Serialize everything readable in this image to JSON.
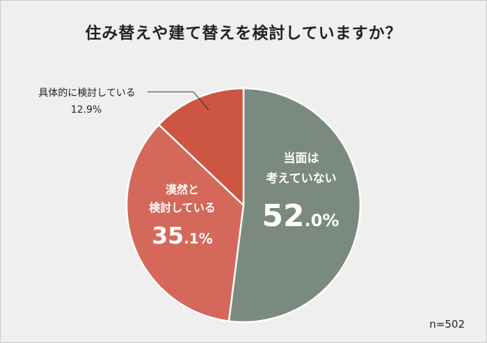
{
  "title": "住み替えや建て替えを検討していますか？",
  "sample_note": "n=502",
  "colors": {
    "not_considering": "#7b8a7e",
    "vaguely": "#d4695b",
    "specifically": "#cc5641",
    "dark_text": "#222222",
    "light_text": "#ffffff"
  },
  "chart_data": {
    "type": "pie",
    "title": "住み替えや建て替えを検討していますか？",
    "slices": [
      {
        "label_lines": [
          "当面は",
          "考えていない"
        ],
        "value": 52.0,
        "value_main": "52",
        "value_dec": ".0%"
      },
      {
        "label_lines": [
          "漠然と",
          "検討している"
        ],
        "value": 35.1,
        "value_main": "35",
        "value_dec": ".1%"
      },
      {
        "label_lines": [
          "具体的に検討している"
        ],
        "value": 12.9,
        "value_text": "12.9%"
      }
    ]
  }
}
